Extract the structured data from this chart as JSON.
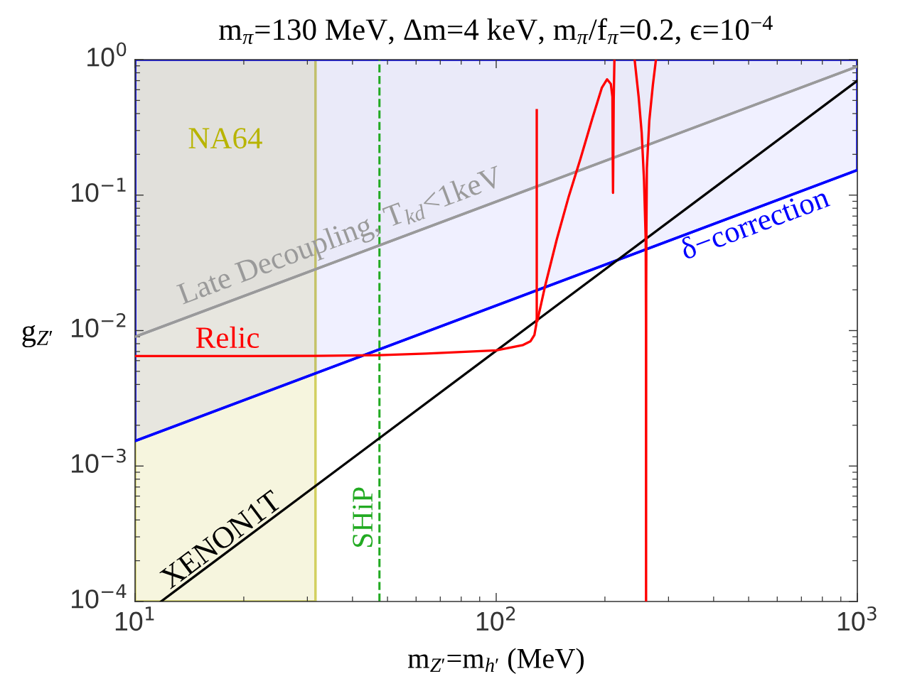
{
  "chart_data": {
    "type": "line",
    "title": "m$_{π}$=130 MeV, Δm=4 keV, m$_{π}$/f$_{π}$=0.2, ϵ=10$^{−4}$",
    "xlabel": "m$_{Z′}$=m$_{h′}$ (MeV)",
    "ylabel": "g$_{Z′}$",
    "log": "xy",
    "xlim": [
      10,
      1000
    ],
    "ylim": [
      0.0001,
      1
    ],
    "xticks": [
      {
        "value": 10,
        "label": "10$^{1}$"
      },
      {
        "value": 100,
        "label": "10$^{2}$"
      },
      {
        "value": 1000,
        "label": "10$^{3}$"
      }
    ],
    "yticks": [
      {
        "value": 0.0001,
        "label": "10$^{−4}$"
      },
      {
        "value": 0.001,
        "label": "10$^{−3}$"
      },
      {
        "value": 0.01,
        "label": "10$^{−2}$"
      },
      {
        "value": 0.1,
        "label": "10$^{−1}$"
      },
      {
        "value": 1,
        "label": "10$^{0}$"
      }
    ],
    "series": [
      {
        "name": "Late Decoupling, T$_{kd}$<1keV",
        "color": "#9a9a9a",
        "x": [
          10,
          1000
        ],
        "values": [
          0.009,
          0.89
        ],
        "lower": [
          0.009,
          0.89
        ],
        "upper": [
          1,
          1
        ]
      },
      {
        "name": "δ−correction",
        "color": "#0000ff",
        "x": [
          10,
          1000
        ],
        "values": [
          0.00153,
          0.153
        ],
        "lower": [
          0.00153,
          0.153
        ],
        "upper": [
          1,
          1
        ]
      },
      {
        "name": "XENON1T",
        "color": "#000000",
        "x": [
          11.8,
          1000
        ],
        "values": [
          0.0001,
          0.7
        ]
      },
      {
        "name": "Relic",
        "color": "#ff0000",
        "x": [
          10,
          20,
          31.6,
          47.5,
          64.1,
          100,
          118.7,
          124.5,
          127.6,
          129.1,
          129.5,
          129.5
        ],
        "values": [
          0.00648,
          0.00649,
          0.0065,
          0.00659,
          0.00677,
          0.00715,
          0.00783,
          0.00835,
          0.0093,
          0.0111,
          0.0125,
          0.424
        ]
      },
      {
        "color": "#ff0000",
        "x": [
          130,
          136.5,
          147.2,
          158.8,
          171.2,
          184.6,
          196.2,
          202.8,
          207.7,
          209.8,
          210.2,
          210.6,
          211.0,
          211.5,
          212.5
        ],
        "values": [
          0.0118,
          0.0212,
          0.0473,
          0.0977,
          0.186,
          0.368,
          0.622,
          0.716,
          0.661,
          0.53,
          0.2,
          0.104,
          0.2,
          0.5,
          1
        ]
      },
      {
        "color": "#ff0000",
        "x": [
          241.7,
          248,
          252.8,
          256.6,
          259.4,
          259.9,
          260,
          260.2,
          260.6,
          261.3,
          265.4,
          271.5,
          276.9
        ],
        "values": [
          1,
          0.53,
          0.29,
          0.13,
          0.047,
          0.01,
          0.0001,
          0.02,
          0.06,
          0.158,
          0.354,
          0.648,
          1
        ]
      }
    ],
    "ref_lines": [
      {
        "axis": "x",
        "value": 47.5,
        "label": "SHiP",
        "color": "#22aa22",
        "line_style": "dashed"
      }
    ],
    "bands": [
      {
        "axis": "x",
        "from": 10,
        "to": 31.6,
        "label": "NA64",
        "color": "#b8b400"
      }
    ]
  }
}
